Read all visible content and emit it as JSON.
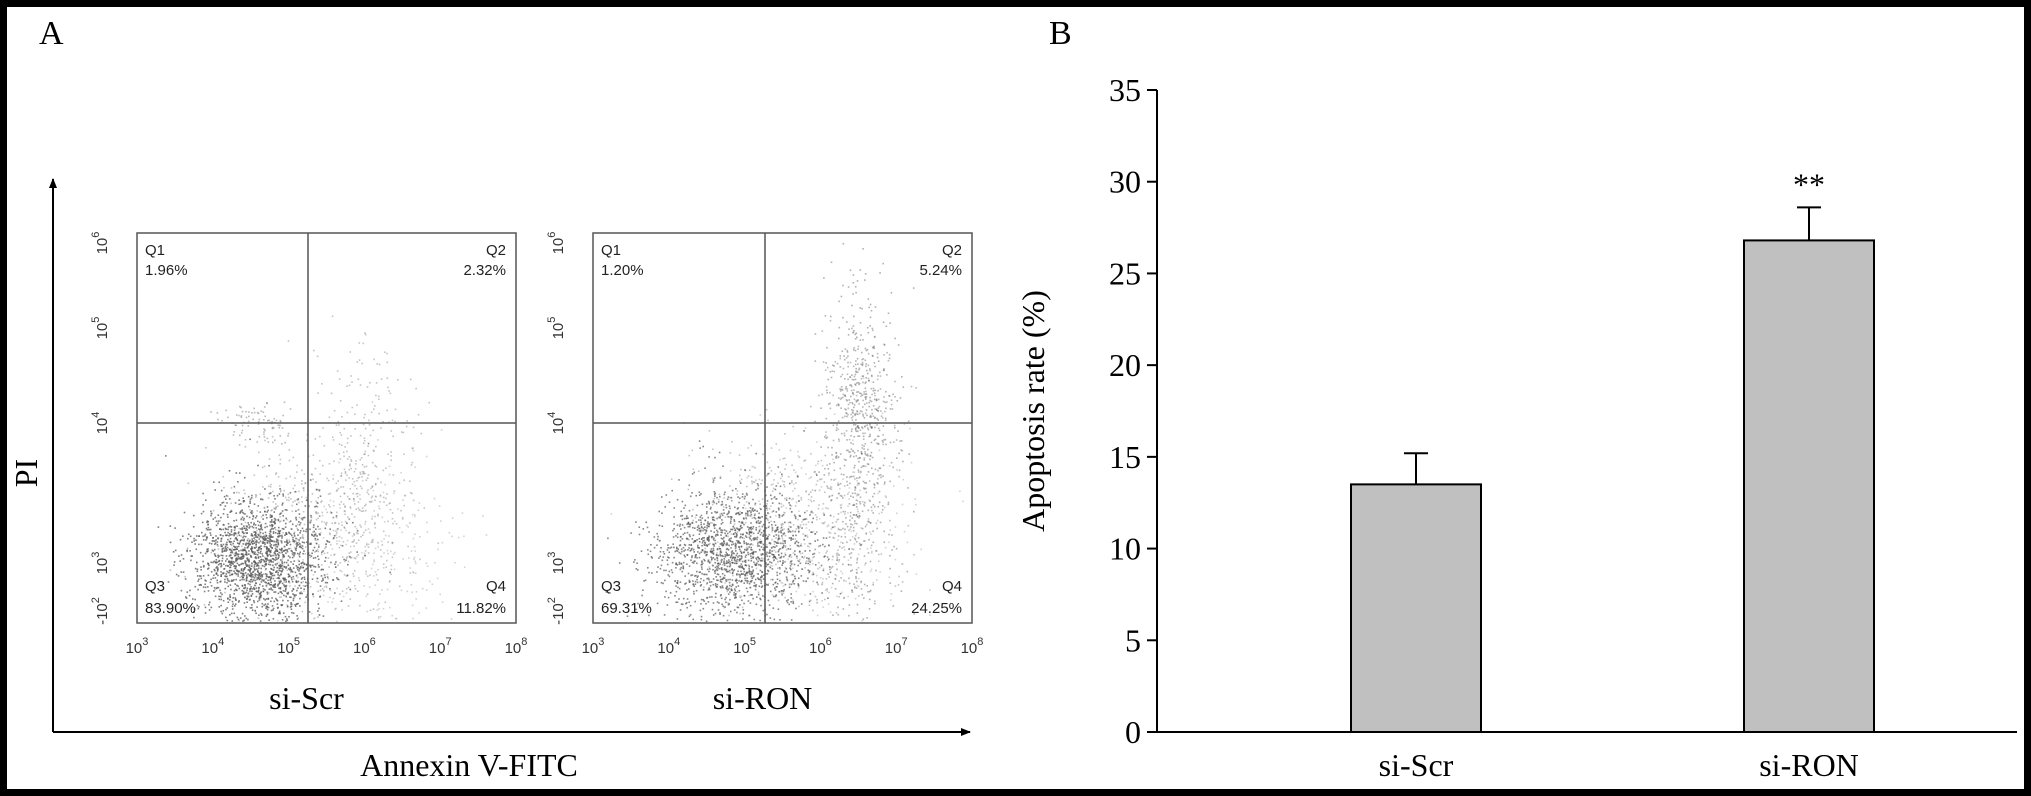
{
  "panels": {
    "a_letter": "A",
    "b_letter": "B"
  },
  "flow": {
    "y_axis_label": "PI",
    "x_axis_label": "Annexin V-FITC",
    "x_ticks": [
      {
        "base": "10",
        "exp": "3"
      },
      {
        "base": "10",
        "exp": "4"
      },
      {
        "base": "10",
        "exp": "5"
      },
      {
        "base": "10",
        "exp": "6"
      },
      {
        "base": "10",
        "exp": "7"
      },
      {
        "base": "10",
        "exp": "8"
      }
    ],
    "y_ticks": [
      {
        "base": "-10",
        "exp": "2"
      },
      {
        "base": "10",
        "exp": "3"
      },
      {
        "base": "10",
        "exp": "4"
      },
      {
        "base": "10",
        "exp": "5"
      },
      {
        "base": "10",
        "exp": "6"
      }
    ],
    "plots": [
      {
        "name": "si-Scr",
        "Q1": {
          "label": "Q1",
          "value": "1.96%"
        },
        "Q2": {
          "label": "Q2",
          "value": "2.32%"
        },
        "Q3": {
          "label": "Q3",
          "value": "83.90%"
        },
        "Q4": {
          "label": "Q4",
          "value": "11.82%"
        }
      },
      {
        "name": "si-RON",
        "Q1": {
          "label": "Q1",
          "value": "1.20%"
        },
        "Q2": {
          "label": "Q2",
          "value": "5.24%"
        },
        "Q3": {
          "label": "Q3",
          "value": "69.31%"
        },
        "Q4": {
          "label": "Q4",
          "value": "24.25%"
        }
      }
    ]
  },
  "chart_data": {
    "type": "bar",
    "categories": [
      "si-Scr",
      "si-RON"
    ],
    "values": [
      13.5,
      26.8
    ],
    "errors": [
      1.7,
      1.8
    ],
    "annotations": [
      "",
      "**"
    ],
    "ylabel": "Apoptosis rate (%)",
    "ylim": [
      0,
      35
    ],
    "yticks": [
      0,
      5,
      10,
      15,
      20,
      25,
      30,
      35
    ],
    "bar_color": "#c0c0c0"
  }
}
